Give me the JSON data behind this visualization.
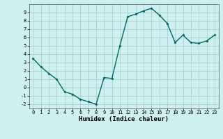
{
  "x": [
    0,
    1,
    2,
    3,
    4,
    5,
    6,
    7,
    8,
    9,
    10,
    11,
    12,
    13,
    14,
    15,
    16,
    17,
    18,
    19,
    20,
    21,
    22,
    23
  ],
  "y": [
    3.5,
    2.5,
    1.7,
    1.0,
    -0.5,
    -0.8,
    -1.4,
    -1.7,
    -2.0,
    1.2,
    1.1,
    5.0,
    8.5,
    8.8,
    9.2,
    9.5,
    8.7,
    7.7,
    5.4,
    6.3,
    5.4,
    5.3,
    5.6,
    6.3
  ],
  "line_color": "#006666",
  "marker": "D",
  "marker_size": 1.5,
  "bg_color": "#cff0f0",
  "grid_color": "#aacfcf",
  "xlabel": "Humidex (Indice chaleur)",
  "xlim": [
    -0.5,
    23.5
  ],
  "ylim": [
    -2.5,
    10.0
  ],
  "xticks": [
    0,
    1,
    2,
    3,
    4,
    5,
    6,
    7,
    8,
    9,
    10,
    11,
    12,
    13,
    14,
    15,
    16,
    17,
    18,
    19,
    20,
    21,
    22,
    23
  ],
  "yticks": [
    -2,
    -1,
    0,
    1,
    2,
    3,
    4,
    5,
    6,
    7,
    8,
    9
  ],
  "tick_fontsize": 5.0,
  "xlabel_fontsize": 6.5,
  "line_width": 1.0
}
